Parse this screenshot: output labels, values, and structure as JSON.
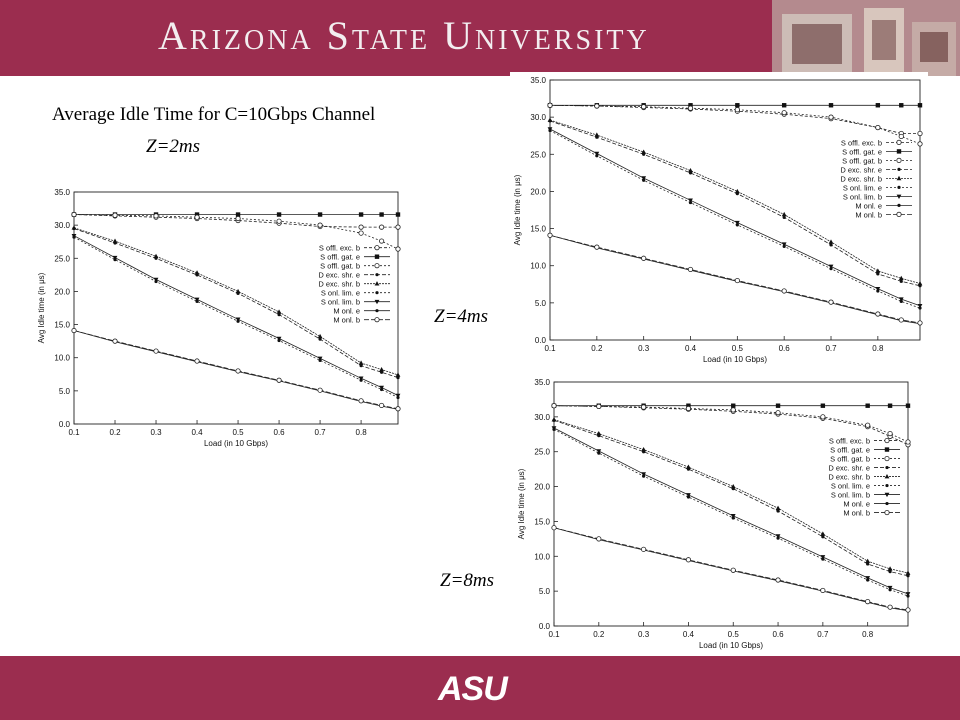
{
  "header": {
    "title": "Arizona State University",
    "bg_color": "#9b2d4f"
  },
  "footer": {
    "logo_text": "ASU",
    "bg_color": "#9b2d4f"
  },
  "slide": {
    "title": "Average Idle Time for C=10Gbps Channel",
    "z_labels": [
      "Z=2ms",
      "Z=4ms",
      "Z=8ms"
    ]
  },
  "chart_data": [
    {
      "type": "line",
      "id": "Z=2ms",
      "xlabel": "Load (in 10 Gbps)",
      "ylabel": "Avg Idle time (in μs)",
      "xlim": [
        0.1,
        0.89
      ],
      "ylim": [
        0,
        35
      ],
      "xticks": [
        "0.1",
        "0.2",
        "0.3",
        "0.4",
        "0.5",
        "0.6",
        "0.7",
        "0.8"
      ],
      "yticks": [
        "0.0",
        "5.0",
        "10.0",
        "15.0",
        "20.0",
        "25.0",
        "30.0",
        "35.0"
      ],
      "legend_position": "right",
      "series": [
        {
          "name": "S offl. exc. b",
          "x": [
            0.1,
            0.2,
            0.3,
            0.4,
            0.5,
            0.6,
            0.7,
            0.8,
            0.85,
            0.89
          ],
          "y": [
            31.6,
            31.4,
            31.2,
            31.0,
            30.7,
            30.3,
            29.8,
            29.7,
            29.7,
            29.7
          ]
        },
        {
          "name": "S offl. gat. e",
          "x": [
            0.1,
            0.2,
            0.3,
            0.4,
            0.5,
            0.6,
            0.7,
            0.8,
            0.85,
            0.89
          ],
          "y": [
            31.6,
            31.6,
            31.6,
            31.6,
            31.6,
            31.6,
            31.6,
            31.6,
            31.6,
            31.6
          ]
        },
        {
          "name": "S offl. gat. b",
          "x": [
            0.1,
            0.2,
            0.3,
            0.4,
            0.5,
            0.6,
            0.7,
            0.8,
            0.85,
            0.89
          ],
          "y": [
            31.6,
            31.5,
            31.4,
            31.2,
            31.0,
            30.6,
            30.0,
            28.8,
            27.6,
            26.4
          ]
        },
        {
          "name": "D exc. shr. e",
          "x": [
            0.1,
            0.2,
            0.3,
            0.4,
            0.5,
            0.6,
            0.7,
            0.8,
            0.85,
            0.89
          ],
          "y": [
            29.5,
            27.3,
            25.0,
            22.5,
            19.7,
            16.5,
            12.8,
            8.8,
            7.8,
            7.0
          ]
        },
        {
          "name": "D exc. shr. b",
          "x": [
            0.1,
            0.2,
            0.3,
            0.4,
            0.5,
            0.6,
            0.7,
            0.8,
            0.85,
            0.89
          ],
          "y": [
            29.6,
            27.6,
            25.3,
            22.8,
            20.0,
            16.9,
            13.2,
            9.2,
            8.2,
            7.4
          ]
        },
        {
          "name": "S onl. lim. e",
          "x": [
            0.1,
            0.2,
            0.3,
            0.4,
            0.5,
            0.6,
            0.7,
            0.8,
            0.85,
            0.89
          ],
          "y": [
            28.2,
            24.8,
            21.5,
            18.5,
            15.5,
            12.6,
            9.6,
            6.6,
            5.2,
            4.0
          ]
        },
        {
          "name": "S onl. lim. b",
          "x": [
            0.1,
            0.2,
            0.3,
            0.4,
            0.5,
            0.6,
            0.7,
            0.8,
            0.85,
            0.89
          ],
          "y": [
            28.4,
            25.1,
            21.8,
            18.8,
            15.8,
            12.9,
            9.9,
            6.9,
            5.5,
            4.3
          ]
        },
        {
          "name": "M onl. e",
          "x": [
            0.1,
            0.2,
            0.3,
            0.4,
            0.5,
            0.6,
            0.7,
            0.8,
            0.85,
            0.89
          ],
          "y": [
            14.1,
            12.4,
            10.9,
            9.4,
            7.9,
            6.5,
            5.0,
            3.4,
            2.7,
            2.2
          ]
        },
        {
          "name": "M onl. b",
          "x": [
            0.1,
            0.2,
            0.3,
            0.4,
            0.5,
            0.6,
            0.7,
            0.8,
            0.85,
            0.89
          ],
          "y": [
            14.1,
            12.5,
            11.0,
            9.5,
            8.0,
            6.6,
            5.1,
            3.5,
            2.8,
            2.3
          ]
        }
      ]
    },
    {
      "type": "line",
      "id": "Z=4ms",
      "xlabel": "Load (in 10 Gbps)",
      "ylabel": "Avg Idle time (in μs)",
      "xlim": [
        0.1,
        0.89
      ],
      "ylim": [
        0,
        35
      ],
      "xticks": [
        "0.1",
        "0.2",
        "0.3",
        "0.4",
        "0.5",
        "0.6",
        "0.7",
        "0.8"
      ],
      "yticks": [
        "0.0",
        "5.0",
        "10.0",
        "15.0",
        "20.0",
        "25.0",
        "30.0",
        "35.0"
      ],
      "legend_position": "right",
      "series": [
        {
          "name": "S offl. exc. b",
          "x": [
            0.1,
            0.2,
            0.3,
            0.4,
            0.5,
            0.6,
            0.7,
            0.8,
            0.85,
            0.89
          ],
          "y": [
            31.6,
            31.5,
            31.3,
            31.1,
            30.8,
            30.4,
            29.8,
            28.6,
            27.8,
            27.8
          ]
        },
        {
          "name": "S offl. gat. e",
          "x": [
            0.1,
            0.2,
            0.3,
            0.4,
            0.5,
            0.6,
            0.7,
            0.8,
            0.85,
            0.89
          ],
          "y": [
            31.6,
            31.6,
            31.6,
            31.6,
            31.6,
            31.6,
            31.6,
            31.6,
            31.6,
            31.6
          ]
        },
        {
          "name": "S offl. gat. b",
          "x": [
            0.1,
            0.2,
            0.3,
            0.4,
            0.5,
            0.6,
            0.7,
            0.8,
            0.85,
            0.89
          ],
          "y": [
            31.6,
            31.5,
            31.4,
            31.2,
            31.0,
            30.6,
            30.0,
            28.6,
            27.4,
            26.4
          ]
        },
        {
          "name": "D exc. shr. e",
          "x": [
            0.1,
            0.2,
            0.3,
            0.4,
            0.5,
            0.6,
            0.7,
            0.8,
            0.85,
            0.89
          ],
          "y": [
            29.5,
            27.3,
            25.0,
            22.5,
            19.7,
            16.5,
            12.8,
            8.9,
            7.9,
            7.3
          ]
        },
        {
          "name": "D exc. shr. b",
          "x": [
            0.1,
            0.2,
            0.3,
            0.4,
            0.5,
            0.6,
            0.7,
            0.8,
            0.85,
            0.89
          ],
          "y": [
            29.6,
            27.6,
            25.3,
            22.8,
            20.0,
            16.9,
            13.2,
            9.3,
            8.3,
            7.6
          ]
        },
        {
          "name": "S onl. lim. e",
          "x": [
            0.1,
            0.2,
            0.3,
            0.4,
            0.5,
            0.6,
            0.7,
            0.8,
            0.85,
            0.89
          ],
          "y": [
            28.2,
            24.8,
            21.5,
            18.5,
            15.5,
            12.6,
            9.6,
            6.6,
            5.2,
            4.3
          ]
        },
        {
          "name": "S onl. lim. b",
          "x": [
            0.1,
            0.2,
            0.3,
            0.4,
            0.5,
            0.6,
            0.7,
            0.8,
            0.85,
            0.89
          ],
          "y": [
            28.4,
            25.1,
            21.8,
            18.8,
            15.8,
            12.9,
            9.9,
            6.9,
            5.5,
            4.6
          ]
        },
        {
          "name": "M onl. e",
          "x": [
            0.1,
            0.2,
            0.3,
            0.4,
            0.5,
            0.6,
            0.7,
            0.8,
            0.85,
            0.89
          ],
          "y": [
            14.1,
            12.4,
            10.9,
            9.4,
            7.9,
            6.5,
            5.0,
            3.4,
            2.6,
            2.2
          ]
        },
        {
          "name": "M onl. b",
          "x": [
            0.1,
            0.2,
            0.3,
            0.4,
            0.5,
            0.6,
            0.7,
            0.8,
            0.85,
            0.89
          ],
          "y": [
            14.1,
            12.5,
            11.0,
            9.5,
            8.0,
            6.6,
            5.1,
            3.5,
            2.7,
            2.3
          ]
        }
      ]
    },
    {
      "type": "line",
      "id": "Z=8ms",
      "xlabel": "Load (in 10 Gbps)",
      "ylabel": "Avg Idle time (in μs)",
      "xlim": [
        0.1,
        0.89
      ],
      "ylim": [
        0,
        35
      ],
      "xticks": [
        "0.1",
        "0.2",
        "0.3",
        "0.4",
        "0.5",
        "0.6",
        "0.7",
        "0.8"
      ],
      "yticks": [
        "0.0",
        "5.0",
        "10.0",
        "15.0",
        "20.0",
        "25.0",
        "30.0",
        "35.0"
      ],
      "legend_position": "right",
      "series": [
        {
          "name": "S offl. exc. b",
          "x": [
            0.1,
            0.2,
            0.3,
            0.4,
            0.5,
            0.6,
            0.7,
            0.8,
            0.85,
            0.89
          ],
          "y": [
            31.6,
            31.5,
            31.3,
            31.1,
            30.8,
            30.4,
            29.8,
            28.6,
            27.2,
            26.0
          ]
        },
        {
          "name": "S offl. gat. e",
          "x": [
            0.1,
            0.2,
            0.3,
            0.4,
            0.5,
            0.6,
            0.7,
            0.8,
            0.85,
            0.89
          ],
          "y": [
            31.6,
            31.6,
            31.6,
            31.6,
            31.6,
            31.6,
            31.6,
            31.6,
            31.6,
            31.6
          ]
        },
        {
          "name": "S offl. gat. b",
          "x": [
            0.1,
            0.2,
            0.3,
            0.4,
            0.5,
            0.6,
            0.7,
            0.8,
            0.85,
            0.89
          ],
          "y": [
            31.6,
            31.5,
            31.4,
            31.2,
            31.0,
            30.6,
            30.0,
            28.8,
            27.6,
            26.4
          ]
        },
        {
          "name": "D exc. shr. e",
          "x": [
            0.1,
            0.2,
            0.3,
            0.4,
            0.5,
            0.6,
            0.7,
            0.8,
            0.85,
            0.89
          ],
          "y": [
            29.5,
            27.3,
            25.0,
            22.5,
            19.7,
            16.5,
            12.8,
            8.9,
            7.8,
            7.2
          ]
        },
        {
          "name": "D exc. shr. b",
          "x": [
            0.1,
            0.2,
            0.3,
            0.4,
            0.5,
            0.6,
            0.7,
            0.8,
            0.85,
            0.89
          ],
          "y": [
            29.6,
            27.6,
            25.3,
            22.8,
            20.0,
            16.9,
            13.2,
            9.3,
            8.2,
            7.6
          ]
        },
        {
          "name": "S onl. lim. e",
          "x": [
            0.1,
            0.2,
            0.3,
            0.4,
            0.5,
            0.6,
            0.7,
            0.8,
            0.85,
            0.89
          ],
          "y": [
            28.2,
            24.8,
            21.5,
            18.5,
            15.5,
            12.6,
            9.6,
            6.6,
            5.2,
            4.3
          ]
        },
        {
          "name": "S onl. lim. b",
          "x": [
            0.1,
            0.2,
            0.3,
            0.4,
            0.5,
            0.6,
            0.7,
            0.8,
            0.85,
            0.89
          ],
          "y": [
            28.4,
            25.1,
            21.8,
            18.8,
            15.8,
            12.9,
            9.9,
            6.9,
            5.5,
            4.6
          ]
        },
        {
          "name": "M onl. e",
          "x": [
            0.1,
            0.2,
            0.3,
            0.4,
            0.5,
            0.6,
            0.7,
            0.8,
            0.85,
            0.89
          ],
          "y": [
            14.1,
            12.4,
            10.9,
            9.4,
            7.9,
            6.5,
            5.0,
            3.4,
            2.6,
            2.2
          ]
        },
        {
          "name": "M onl. b",
          "x": [
            0.1,
            0.2,
            0.3,
            0.4,
            0.5,
            0.6,
            0.7,
            0.8,
            0.85,
            0.89
          ],
          "y": [
            14.1,
            12.5,
            11.0,
            9.5,
            8.0,
            6.6,
            5.1,
            3.5,
            2.7,
            2.3
          ]
        }
      ]
    }
  ]
}
